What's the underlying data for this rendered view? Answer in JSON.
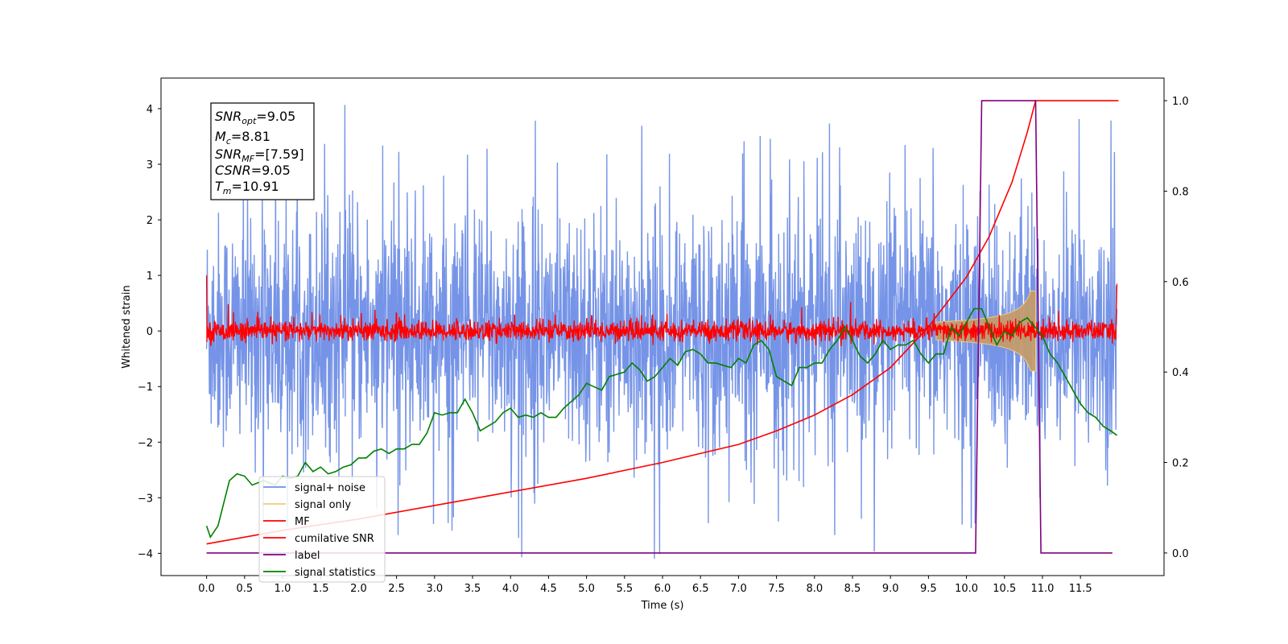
{
  "chart_data": {
    "type": "line",
    "xlabel": "Time (s)",
    "ylabel": "Whitened strain",
    "xlim": [
      -0.6,
      12.6
    ],
    "ylim": [
      -4.4,
      4.55
    ],
    "ylim_right": [
      -0.05,
      1.05
    ],
    "x_ticks": [
      "0.0",
      "0.5",
      "1.0",
      "1.5",
      "2.0",
      "2.5",
      "3.0",
      "3.5",
      "4.0",
      "4.5",
      "5.0",
      "5.5",
      "6.0",
      "6.5",
      "7.0",
      "7.5",
      "8.0",
      "8.5",
      "9.0",
      "9.5",
      "10.0",
      "10.5",
      "11.0",
      "11.5"
    ],
    "y_ticks_left": [
      "−4",
      "−3",
      "−2",
      "−1",
      "0",
      "1",
      "2",
      "3",
      "4"
    ],
    "y_ticks_right": [
      "0.0",
      "0.2",
      "0.4",
      "0.6",
      "0.8",
      "1.0"
    ],
    "legend_position": "lower-left",
    "series": [
      {
        "name": "signal+ noise",
        "color": "#6f8ee6",
        "axis": "left",
        "style": "dense noise band, amplitude roughly ±2.3 with spikes to ±4.2",
        "x_range": [
          0,
          11.98
        ]
      },
      {
        "name": "signal only",
        "color": "#f5c878",
        "axis": "left",
        "style": "chirp from ~9.7 s, peak amplitude ~0.7 at 10.9 s",
        "x_range": [
          9.6,
          10.91
        ]
      },
      {
        "name": "MF",
        "color": "#ff0000",
        "axis": "left",
        "style": "noise around 0, amplitude ~0.2, spikes to ~0.45",
        "x_range": [
          0,
          11.98
        ]
      },
      {
        "name": "cumilative SNR",
        "color": "#ff0000",
        "axis": "right",
        "points": [
          [
            0,
            0.02
          ],
          [
            1,
            0.05
          ],
          [
            2,
            0.075
          ],
          [
            3,
            0.105
          ],
          [
            4,
            0.135
          ],
          [
            5,
            0.165
          ],
          [
            6,
            0.2
          ],
          [
            7,
            0.24
          ],
          [
            7.5,
            0.27
          ],
          [
            8,
            0.305
          ],
          [
            8.5,
            0.35
          ],
          [
            9,
            0.41
          ],
          [
            9.5,
            0.5
          ],
          [
            10,
            0.61
          ],
          [
            10.3,
            0.7
          ],
          [
            10.6,
            0.82
          ],
          [
            10.8,
            0.93
          ],
          [
            10.91,
            1.0
          ],
          [
            12.0,
            1.0
          ]
        ]
      },
      {
        "name": "label",
        "color": "#800080",
        "axis": "right",
        "points": [
          [
            0,
            0
          ],
          [
            10.12,
            0
          ],
          [
            10.2,
            1
          ],
          [
            10.91,
            1
          ],
          [
            10.98,
            0
          ],
          [
            11.92,
            0
          ]
        ]
      },
      {
        "name": "signal statistics",
        "color": "#008000",
        "axis": "right",
        "points": [
          [
            0,
            0.06
          ],
          [
            0.05,
            0.035
          ],
          [
            0.15,
            0.06
          ],
          [
            0.3,
            0.16
          ],
          [
            0.4,
            0.175
          ],
          [
            0.5,
            0.17
          ],
          [
            0.6,
            0.15
          ],
          [
            0.75,
            0.16
          ],
          [
            0.9,
            0.15
          ],
          [
            1.0,
            0.17
          ],
          [
            1.1,
            0.165
          ],
          [
            1.2,
            0.17
          ],
          [
            1.3,
            0.2
          ],
          [
            1.4,
            0.18
          ],
          [
            1.5,
            0.19
          ],
          [
            1.6,
            0.175
          ],
          [
            1.7,
            0.18
          ],
          [
            1.8,
            0.19
          ],
          [
            1.9,
            0.195
          ],
          [
            2.0,
            0.21
          ],
          [
            2.1,
            0.21
          ],
          [
            2.2,
            0.225
          ],
          [
            2.3,
            0.23
          ],
          [
            2.4,
            0.22
          ],
          [
            2.5,
            0.23
          ],
          [
            2.6,
            0.23
          ],
          [
            2.7,
            0.24
          ],
          [
            2.8,
            0.24
          ],
          [
            2.9,
            0.265
          ],
          [
            3.0,
            0.31
          ],
          [
            3.1,
            0.305
          ],
          [
            3.2,
            0.31
          ],
          [
            3.3,
            0.31
          ],
          [
            3.4,
            0.34
          ],
          [
            3.5,
            0.31
          ],
          [
            3.6,
            0.27
          ],
          [
            3.7,
            0.28
          ],
          [
            3.8,
            0.29
          ],
          [
            3.9,
            0.31
          ],
          [
            4.0,
            0.32
          ],
          [
            4.1,
            0.3
          ],
          [
            4.2,
            0.305
          ],
          [
            4.3,
            0.3
          ],
          [
            4.4,
            0.31
          ],
          [
            4.5,
            0.3
          ],
          [
            4.6,
            0.3
          ],
          [
            4.7,
            0.32
          ],
          [
            4.8,
            0.335
          ],
          [
            4.9,
            0.35
          ],
          [
            5.0,
            0.375
          ],
          [
            5.2,
            0.36
          ],
          [
            5.3,
            0.39
          ],
          [
            5.5,
            0.4
          ],
          [
            5.6,
            0.42
          ],
          [
            5.7,
            0.405
          ],
          [
            5.8,
            0.38
          ],
          [
            5.9,
            0.39
          ],
          [
            6.0,
            0.41
          ],
          [
            6.1,
            0.43
          ],
          [
            6.2,
            0.415
          ],
          [
            6.3,
            0.445
          ],
          [
            6.4,
            0.45
          ],
          [
            6.5,
            0.44
          ],
          [
            6.6,
            0.42
          ],
          [
            6.7,
            0.42
          ],
          [
            6.8,
            0.415
          ],
          [
            6.9,
            0.41
          ],
          [
            7.0,
            0.43
          ],
          [
            7.1,
            0.42
          ],
          [
            7.2,
            0.46
          ],
          [
            7.3,
            0.47
          ],
          [
            7.4,
            0.45
          ],
          [
            7.5,
            0.39
          ],
          [
            7.6,
            0.38
          ],
          [
            7.7,
            0.37
          ],
          [
            7.8,
            0.41
          ],
          [
            7.9,
            0.41
          ],
          [
            8.0,
            0.42
          ],
          [
            8.1,
            0.42
          ],
          [
            8.2,
            0.45
          ],
          [
            8.3,
            0.47
          ],
          [
            8.4,
            0.5
          ],
          [
            8.5,
            0.47
          ],
          [
            8.6,
            0.435
          ],
          [
            8.7,
            0.42
          ],
          [
            8.8,
            0.44
          ],
          [
            8.9,
            0.47
          ],
          [
            9.0,
            0.45
          ],
          [
            9.1,
            0.46
          ],
          [
            9.2,
            0.46
          ],
          [
            9.3,
            0.47
          ],
          [
            9.4,
            0.44
          ],
          [
            9.5,
            0.42
          ],
          [
            9.6,
            0.44
          ],
          [
            9.7,
            0.44
          ],
          [
            9.8,
            0.5
          ],
          [
            9.9,
            0.48
          ],
          [
            10.0,
            0.51
          ],
          [
            10.1,
            0.54
          ],
          [
            10.2,
            0.54
          ],
          [
            10.3,
            0.5
          ],
          [
            10.4,
            0.46
          ],
          [
            10.5,
            0.49
          ],
          [
            10.6,
            0.48
          ],
          [
            10.7,
            0.51
          ],
          [
            10.8,
            0.52
          ],
          [
            10.9,
            0.5
          ],
          [
            11.0,
            0.48
          ],
          [
            11.1,
            0.44
          ],
          [
            11.2,
            0.42
          ],
          [
            11.3,
            0.39
          ],
          [
            11.4,
            0.36
          ],
          [
            11.5,
            0.33
          ],
          [
            11.6,
            0.31
          ],
          [
            11.7,
            0.3
          ],
          [
            11.8,
            0.28
          ],
          [
            11.9,
            0.27
          ],
          [
            11.98,
            0.26
          ]
        ]
      }
    ]
  },
  "annotation": {
    "lines": [
      {
        "name": "SNR",
        "sub": "opt",
        "value": "=9.05"
      },
      {
        "name": "M",
        "sub": "c",
        "value": "=8.81"
      },
      {
        "name": "SNR",
        "sub": "MF",
        "value": "=[7.59]"
      },
      {
        "name": "CSNR",
        "sub": "",
        "value": "=9.05"
      },
      {
        "name": "T",
        "sub": "m",
        "value": "=10.91"
      }
    ]
  },
  "legend": {
    "items": [
      {
        "label": "signal+ noise",
        "color": "#6f8ee6"
      },
      {
        "label": "signal only",
        "color": "#f5c878"
      },
      {
        "label": "MF",
        "color": "#ff0000"
      },
      {
        "label": "cumilative SNR",
        "color": "#ff0000"
      },
      {
        "label": "label",
        "color": "#800080"
      },
      {
        "label": "signal statistics",
        "color": "#008000"
      }
    ]
  }
}
